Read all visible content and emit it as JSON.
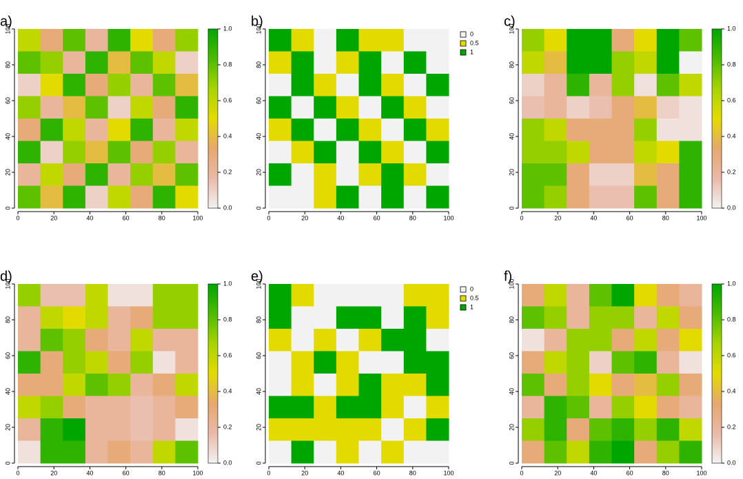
{
  "chart_data": [
    {
      "type": "raster",
      "label": "a)",
      "xlim": [
        0,
        100
      ],
      "ylim": [
        0,
        100
      ],
      "xticks": [
        0,
        20,
        40,
        60,
        80,
        100
      ],
      "yticks": [
        0,
        20,
        40,
        60,
        80,
        100
      ],
      "zlim": [
        0,
        1
      ],
      "colorscale": [
        "#F2F2F2",
        "#EAB9A8",
        "#E6A86E",
        "#E3DB00",
        "#A8D400",
        "#4CBC00",
        "#00A600"
      ],
      "colorbar_ticks": [
        {
          "value": 0,
          "label": "0.0"
        },
        0.2,
        0.4,
        0.6,
        0.8,
        {
          "value": 1,
          "label": "1.0"
        }
      ],
      "z": [
        [
          0.6,
          0.3,
          0.8,
          0.2,
          0.9,
          0.5,
          0.3,
          0.7
        ],
        [
          0.8,
          0.7,
          0.2,
          0.9,
          0.4,
          0.8,
          0.6,
          0.1
        ],
        [
          0.1,
          0.5,
          0.9,
          0.3,
          0.7,
          0.2,
          0.8,
          0.4
        ],
        [
          0.7,
          0.2,
          0.4,
          0.8,
          0.1,
          0.6,
          0.3,
          0.9
        ],
        [
          0.3,
          0.9,
          0.6,
          0.2,
          0.5,
          0.9,
          0.2,
          0.6
        ],
        [
          0.9,
          0.1,
          0.7,
          0.4,
          0.8,
          0.3,
          0.7,
          0.2
        ],
        [
          0.2,
          0.6,
          0.3,
          0.9,
          0.2,
          0.7,
          0.4,
          0.8
        ],
        [
          0.8,
          0.4,
          0.9,
          0.1,
          0.6,
          0.3,
          0.9,
          0.5
        ]
      ]
    },
    {
      "type": "raster",
      "label": "b)",
      "xlim": [
        0,
        100
      ],
      "ylim": [
        0,
        100
      ],
      "xticks": [
        0,
        20,
        40,
        60,
        80,
        100
      ],
      "yticks": [
        0,
        20,
        40,
        60,
        80,
        100
      ],
      "legend": {
        "values": [
          0,
          0.5,
          1
        ],
        "colors": [
          "#F2F2F2",
          "#E3DB00",
          "#00A600"
        ]
      },
      "z": [
        [
          1,
          0.5,
          0,
          1,
          0.5,
          0.5,
          0,
          0
        ],
        [
          0.5,
          1,
          0,
          0.5,
          1,
          0,
          1,
          0
        ],
        [
          0,
          1,
          0.5,
          0,
          1,
          0.5,
          0,
          1
        ],
        [
          1,
          0,
          1,
          0.5,
          0,
          1,
          0.5,
          0
        ],
        [
          0.5,
          1,
          0,
          1,
          0.5,
          0,
          1,
          0.5
        ],
        [
          0,
          0.5,
          1,
          0,
          1,
          0.5,
          0,
          1
        ],
        [
          1,
          0,
          0.5,
          0,
          0.5,
          1,
          0.5,
          0
        ],
        [
          0,
          0,
          0.5,
          1,
          0,
          1,
          0,
          1
        ]
      ]
    },
    {
      "type": "raster",
      "label": "c)",
      "xlim": [
        0,
        100
      ],
      "ylim": [
        0,
        100
      ],
      "xticks": [
        0,
        20,
        40,
        60,
        80,
        100
      ],
      "yticks": [
        0,
        20,
        40,
        60,
        80,
        100
      ],
      "zlim": [
        0,
        1
      ],
      "colorscale": [
        "#F2F2F2",
        "#EAB9A8",
        "#E6A86E",
        "#E3DB00",
        "#A8D400",
        "#4CBC00",
        "#00A600"
      ],
      "colorbar_ticks": [
        {
          "value": 0,
          "label": "0.0"
        },
        0.2,
        0.4,
        0.6,
        0.8,
        {
          "value": 1,
          "label": "1.0"
        }
      ],
      "z": [
        [
          0.7,
          0.5,
          1,
          1,
          0.3,
          0.5,
          1,
          0.8
        ],
        [
          0.6,
          0.4,
          1,
          1,
          0.7,
          0.6,
          1,
          0
        ],
        [
          0.1,
          0.2,
          0.9,
          0.2,
          0.7,
          0.05,
          0.8,
          0.6
        ],
        [
          0.15,
          0.2,
          0.1,
          0.15,
          0.3,
          0.4,
          0.1,
          0.05
        ],
        [
          0.7,
          0.6,
          0.3,
          0.3,
          0.3,
          0.7,
          0.05,
          0.05
        ],
        [
          0.7,
          0.7,
          0.6,
          0.3,
          0.3,
          0.6,
          0.5,
          0.9
        ],
        [
          0.8,
          0.8,
          0.3,
          0.1,
          0.1,
          0.4,
          0.3,
          0.9
        ],
        [
          0.8,
          0.7,
          0.3,
          0.15,
          0.15,
          0.8,
          0.3,
          0.9
        ]
      ]
    },
    {
      "type": "raster",
      "label": "d)",
      "xlim": [
        0,
        100
      ],
      "ylim": [
        0,
        100
      ],
      "xticks": [
        0,
        20,
        40,
        60,
        80,
        100
      ],
      "yticks": [
        0,
        20,
        40,
        60,
        80,
        100
      ],
      "zlim": [
        0,
        1
      ],
      "colorscale": [
        "#F2F2F2",
        "#EAB9A8",
        "#E6A86E",
        "#E3DB00",
        "#A8D400",
        "#4CBC00",
        "#00A600"
      ],
      "colorbar_ticks": [
        {
          "value": 0,
          "label": "0.0"
        },
        0.2,
        0.4,
        0.6,
        0.8,
        {
          "value": 1,
          "label": "1.0"
        }
      ],
      "z": [
        [
          0.7,
          0.15,
          0.15,
          0.6,
          0.05,
          0.05,
          0.7,
          0.7
        ],
        [
          0.2,
          0.6,
          0.5,
          0.6,
          0.2,
          0.3,
          0.7,
          0.7
        ],
        [
          0.2,
          0.8,
          0.7,
          0.3,
          0.2,
          0.6,
          0.2,
          0.2
        ],
        [
          0.9,
          0.3,
          0.7,
          0.6,
          0.3,
          0.7,
          0.05,
          0.2
        ],
        [
          0.3,
          0.3,
          0.6,
          0.8,
          0.7,
          0.2,
          0.3,
          0.6
        ],
        [
          0.6,
          0.7,
          0.3,
          0.2,
          0.2,
          0.15,
          0.2,
          0.3
        ],
        [
          0.2,
          0.9,
          1,
          0.2,
          0.2,
          0.15,
          0.2,
          0.05
        ],
        [
          0.05,
          0.9,
          0.9,
          0.2,
          0.3,
          0.2,
          0.6,
          0.8
        ]
      ]
    },
    {
      "type": "raster",
      "label": "e)",
      "xlim": [
        0,
        100
      ],
      "ylim": [
        0,
        100
      ],
      "xticks": [
        0,
        20,
        40,
        60,
        80,
        100
      ],
      "yticks": [
        0,
        20,
        40,
        60,
        80,
        100
      ],
      "legend": {
        "values": [
          0,
          0.5,
          1
        ],
        "colors": [
          "#F2F2F2",
          "#E3DB00",
          "#00A600"
        ]
      },
      "z": [
        [
          1,
          0.5,
          0,
          0,
          0,
          0,
          0.5,
          0.5
        ],
        [
          1,
          0,
          0,
          1,
          1,
          0,
          1,
          0.5
        ],
        [
          0.5,
          0,
          0.5,
          0,
          0.5,
          1,
          1,
          0
        ],
        [
          0,
          0.5,
          1,
          0.5,
          0,
          0,
          1,
          1
        ],
        [
          0,
          0.5,
          0,
          0.5,
          1,
          0.5,
          0.5,
          1
        ],
        [
          1,
          1,
          0.5,
          1,
          1,
          0.5,
          0,
          0.5
        ],
        [
          0.5,
          0.5,
          0.5,
          0.5,
          0.5,
          0,
          0.5,
          1
        ],
        [
          0,
          1,
          0,
          0.5,
          0,
          0.5,
          0,
          0
        ]
      ]
    },
    {
      "type": "raster",
      "label": "f)",
      "xlim": [
        0,
        100
      ],
      "ylim": [
        0,
        100
      ],
      "xticks": [
        0,
        20,
        40,
        60,
        80,
        100
      ],
      "yticks": [
        0,
        20,
        40,
        60,
        80,
        100
      ],
      "zlim": [
        0,
        1
      ],
      "colorscale": [
        "#F2F2F2",
        "#EAB9A8",
        "#E6A86E",
        "#E3DB00",
        "#A8D400",
        "#4CBC00",
        "#00A600"
      ],
      "colorbar_ticks": [
        {
          "value": 0,
          "label": "0.0"
        },
        0.2,
        0.4,
        0.6,
        0.8,
        {
          "value": 1,
          "label": "1.0"
        }
      ],
      "z": [
        [
          0.3,
          0.6,
          0.2,
          0.8,
          1,
          0.5,
          0.3,
          0.2
        ],
        [
          0.8,
          0.7,
          0.2,
          0.7,
          0.7,
          0.2,
          0.6,
          0.3
        ],
        [
          0.05,
          0.2,
          0.7,
          0.7,
          0.3,
          0.6,
          0.3,
          0.5
        ],
        [
          0.3,
          0.6,
          0.7,
          0.1,
          0.8,
          0.9,
          0.2,
          0.05
        ],
        [
          0.8,
          0.3,
          0.7,
          0.5,
          0.3,
          0.4,
          0.7,
          0.3
        ],
        [
          0.2,
          0.9,
          0.8,
          0.2,
          0.7,
          0.5,
          0.3,
          0.2
        ],
        [
          0.7,
          0.9,
          0.3,
          0.8,
          0.9,
          0.7,
          0.9,
          0.6
        ],
        [
          0.3,
          0.8,
          0.6,
          0.9,
          1,
          0.3,
          0.7,
          0.9
        ]
      ]
    }
  ]
}
